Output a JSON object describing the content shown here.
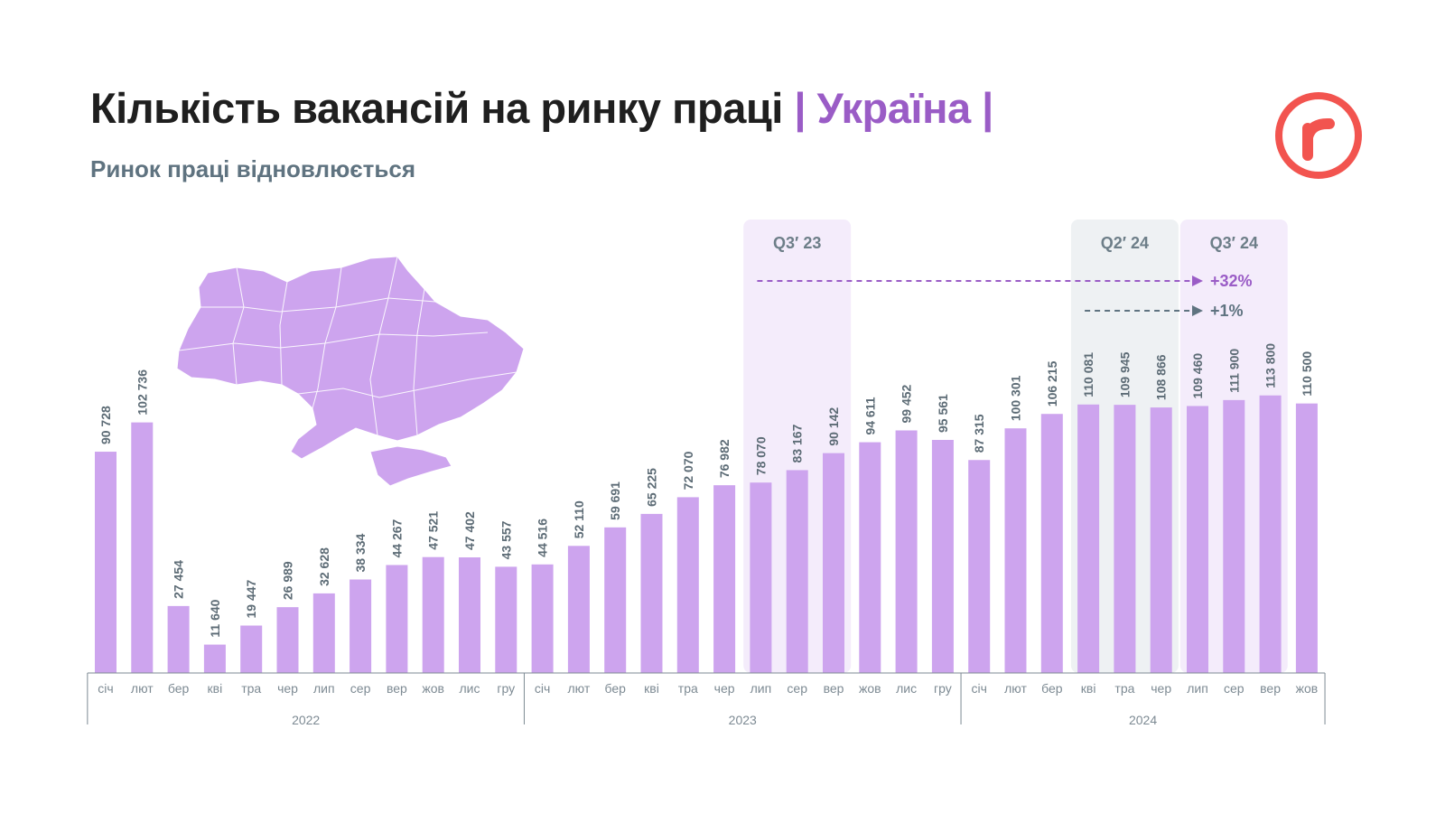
{
  "header": {
    "title": "Кількість вакансій на ринку праці",
    "title_accent": "| Україна |",
    "subtitle": "Ринок праці відновлюється"
  },
  "logo": {
    "letter": "r",
    "color": "#f2544f"
  },
  "colors": {
    "bar": "#cda4ee",
    "accent": "#9a5cc6",
    "highlight_purple": "#f4ecfb",
    "highlight_gray": "#eef1f3",
    "arrow_gray": "#5f7380"
  },
  "map": {
    "icon": "ukraine-map",
    "color": "#cda4ee"
  },
  "chart_data": {
    "type": "bar",
    "title": "Кількість вакансій на ринку праці",
    "categories": [
      "січ",
      "лют",
      "бер",
      "кві",
      "тра",
      "чер",
      "лип",
      "сер",
      "вер",
      "жов",
      "лис",
      "гру",
      "січ",
      "лют",
      "бер",
      "кві",
      "тра",
      "чер",
      "лип",
      "сер",
      "вер",
      "жов",
      "лис",
      "гру",
      "січ",
      "лют",
      "бер",
      "кві",
      "тра",
      "чер",
      "лип",
      "сер",
      "вер",
      "жов"
    ],
    "values": [
      90728,
      102736,
      27454,
      11640,
      19447,
      26989,
      32628,
      38334,
      44267,
      47521,
      47402,
      43557,
      44516,
      52110,
      59691,
      65225,
      72070,
      76982,
      78070,
      83167,
      90142,
      94611,
      99452,
      95561,
      87315,
      100301,
      106215,
      110081,
      109945,
      108866,
      109460,
      111900,
      113800,
      110500
    ],
    "value_labels": [
      "90 728",
      "102 736",
      "27 454",
      "11 640",
      "19 447",
      "26 989",
      "32 628",
      "38 334",
      "44 267",
      "47 521",
      "47 402",
      "43 557",
      "44 516",
      "52 110",
      "59 691",
      "65 225",
      "72 070",
      "76 982",
      "78 070",
      "83 167",
      "90 142",
      "94 611",
      "99 452",
      "95 561",
      "87 315",
      "100 301",
      "106 215",
      "110 081",
      "109 945",
      "108 866",
      "109 460",
      "111 900",
      "113 800",
      "110 500"
    ],
    "years": [
      {
        "label": "2022",
        "start": 0,
        "end": 11
      },
      {
        "label": "2023",
        "start": 12,
        "end": 23
      },
      {
        "label": "2024",
        "start": 24,
        "end": 33
      }
    ],
    "highlights": [
      {
        "label": "Q3′ 23",
        "start": 18,
        "end": 20,
        "style": "purple"
      },
      {
        "label": "Q2′ 24",
        "start": 27,
        "end": 29,
        "style": "gray"
      },
      {
        "label": "Q3′ 24",
        "start": 30,
        "end": 32,
        "style": "purple"
      }
    ],
    "comparisons": [
      {
        "label": "+32%",
        "from": 18,
        "to": 30,
        "style": "purple"
      },
      {
        "label": "+1%",
        "from": 27,
        "to": 30,
        "style": "gray"
      }
    ],
    "ylim": [
      0,
      125000
    ],
    "grid": false,
    "legend": "none"
  }
}
